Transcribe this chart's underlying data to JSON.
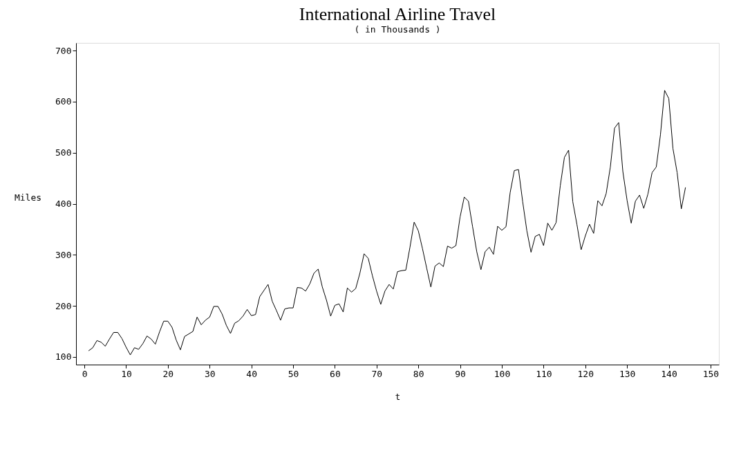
{
  "chart_data": {
    "type": "line",
    "title": "International Airline Travel",
    "subtitle": "( in Thousands )",
    "xlabel": "t",
    "ylabel": "Miles",
    "x": [
      1,
      2,
      3,
      4,
      5,
      6,
      7,
      8,
      9,
      10,
      11,
      12,
      13,
      14,
      15,
      16,
      17,
      18,
      19,
      20,
      21,
      22,
      23,
      24,
      25,
      26,
      27,
      28,
      29,
      30,
      31,
      32,
      33,
      34,
      35,
      36,
      37,
      38,
      39,
      40,
      41,
      42,
      43,
      44,
      45,
      46,
      47,
      48,
      49,
      50,
      51,
      52,
      53,
      54,
      55,
      56,
      57,
      58,
      59,
      60,
      61,
      62,
      63,
      64,
      65,
      66,
      67,
      68,
      69,
      70,
      71,
      72,
      73,
      74,
      75,
      76,
      77,
      78,
      79,
      80,
      81,
      82,
      83,
      84,
      85,
      86,
      87,
      88,
      89,
      90,
      91,
      92,
      93,
      94,
      95,
      96,
      97,
      98,
      99,
      100,
      101,
      102,
      103,
      104,
      105,
      106,
      107,
      108,
      109,
      110,
      111,
      112,
      113,
      114,
      115,
      116,
      117,
      118,
      119,
      120,
      121,
      122,
      123,
      124,
      125,
      126,
      127,
      128,
      129,
      130,
      131,
      132,
      133,
      134,
      135,
      136,
      137,
      138,
      139,
      140,
      141,
      142,
      143,
      144
    ],
    "series": [
      {
        "color": "#000000",
        "values": [
          112,
          118,
          132,
          129,
          121,
          135,
          148,
          148,
          136,
          119,
          104,
          118,
          115,
          126,
          141,
          135,
          125,
          149,
          170,
          170,
          158,
          133,
          114,
          140,
          145,
          150,
          178,
          163,
          172,
          178,
          199,
          199,
          184,
          162,
          146,
          166,
          171,
          180,
          193,
          181,
          183,
          218,
          230,
          242,
          209,
          191,
          172,
          194,
          196,
          196,
          236,
          235,
          229,
          243,
          264,
          272,
          237,
          211,
          180,
          201,
          204,
          188,
          235,
          227,
          234,
          264,
          302,
          293,
          259,
          229,
          203,
          229,
          242,
          233,
          267,
          269,
          270,
          315,
          364,
          347,
          312,
          274,
          237,
          278,
          284,
          277,
          317,
          313,
          318,
          374,
          413,
          405,
          355,
          306,
          271,
          306,
          315,
          301,
          356,
          348,
          355,
          422,
          465,
          467,
          404,
          347,
          305,
          336,
          340,
          318,
          362,
          348,
          363,
          435,
          491,
          505,
          404,
          359,
          310,
          337,
          360,
          342,
          406,
          396,
          420,
          472,
          548,
          559,
          463,
          407,
          362,
          405,
          417,
          391,
          419,
          461,
          472,
          535,
          622,
          606,
          508,
          461,
          390,
          432
        ]
      }
    ],
    "xlim": [
      -2,
      152
    ],
    "ylim": [
      85,
      715
    ],
    "xticks": [
      0,
      10,
      20,
      30,
      40,
      50,
      60,
      70,
      80,
      90,
      100,
      110,
      120,
      130,
      140,
      150
    ],
    "yticks": [
      100,
      200,
      300,
      400,
      500,
      600,
      700
    ],
    "grid": false,
    "marker": "none",
    "line_style": "solid"
  }
}
